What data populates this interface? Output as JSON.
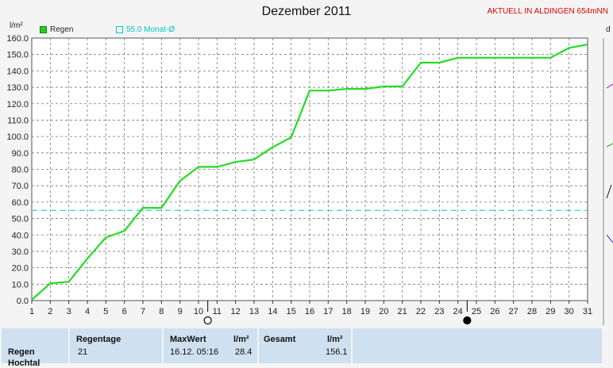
{
  "header": {
    "title": "Dezember 2011",
    "station": "AKTUELL IN ALDINGEN 654mNN",
    "right_cut_text": "d"
  },
  "chart_data": {
    "type": "line",
    "ylabel": "l/m²",
    "ylim": [
      0,
      160
    ],
    "yticks": [
      "0.0",
      "10.0",
      "20.0",
      "30.0",
      "40.0",
      "50.0",
      "60.0",
      "70.0",
      "80.0",
      "90.0",
      "100.0",
      "110.0",
      "120.0",
      "130.0",
      "140.0",
      "150.0",
      "160.0"
    ],
    "x": [
      1,
      2,
      3,
      4,
      5,
      6,
      7,
      8,
      9,
      10,
      11,
      12,
      13,
      14,
      15,
      16,
      17,
      18,
      19,
      20,
      21,
      22,
      23,
      24,
      25,
      26,
      27,
      28,
      29,
      30,
      31
    ],
    "series": [
      {
        "name": "Regen",
        "color": "#22dd22",
        "values": [
          0.5,
          10.5,
          11.5,
          25.5,
          38.5,
          42.5,
          56.5,
          56.5,
          73,
          81.5,
          81.5,
          84.5,
          86,
          93.5,
          99.5,
          128,
          128,
          129,
          129,
          130.5,
          130.5,
          145,
          145,
          148,
          148,
          148,
          148,
          148,
          148,
          154,
          156.1
        ]
      }
    ],
    "reference_line": {
      "label": "55.0 Monat-Ø",
      "value": 55.0,
      "color": "#00c8c8"
    },
    "grid": true,
    "markers": [
      {
        "day": 10.5,
        "symbol": "open-circle"
      },
      {
        "day": 24.5,
        "symbol": "filled-circle"
      }
    ]
  },
  "summary": {
    "row_label": "Regen",
    "row_label_2": "Hochtal",
    "regentage_header": "Regentage",
    "regentage_value": "21",
    "maxwert_header": "MaxWert",
    "maxwert_unit": "l/m²",
    "maxwert_time": "16.12.  05:16",
    "maxwert_value": "28.4",
    "gesamt_header": "Gesamt",
    "gesamt_unit": "l/m²",
    "gesamt_value": "156.1"
  }
}
